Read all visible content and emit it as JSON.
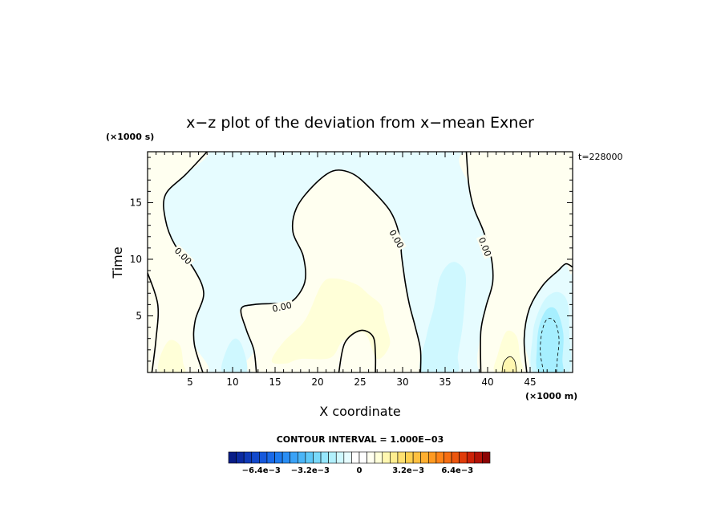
{
  "chart_data": {
    "type": "contour",
    "title": "x−z plot of the deviation from x−mean Exner",
    "xlabel": "X coordinate",
    "ylabel": "Time",
    "x_unit": "(×1000 m)",
    "y_unit": "(×1000 s)",
    "time_label": "t=228000",
    "xlim": [
      0,
      50
    ],
    "ylim": [
      0,
      19.5
    ],
    "x_ticks": [
      5,
      10,
      15,
      20,
      25,
      30,
      35,
      40,
      45
    ],
    "y_ticks": [
      5,
      10,
      15
    ],
    "contour_interval_label": "CONTOUR INTERVAL = 1.000E−03",
    "contour_labels": [
      {
        "text": "0.00",
        "x": 4.2,
        "y": 10.3,
        "angle": 45
      },
      {
        "text": "0.00",
        "x": 15.8,
        "y": 5.8,
        "angle": -12
      },
      {
        "text": "0.00",
        "x": 29.3,
        "y": 11.8,
        "angle": 60
      },
      {
        "text": "0.00",
        "x": 39.7,
        "y": 11.1,
        "angle": 68
      }
    ],
    "zero_contours": [
      [
        [
          7.0,
          19.5
        ],
        [
          4.5,
          17.5
        ],
        [
          2.1,
          15.7
        ],
        [
          2.1,
          13.5
        ],
        [
          3.2,
          11.3
        ],
        [
          5.4,
          9.2
        ],
        [
          6.6,
          7.0
        ],
        [
          5.6,
          4.6
        ],
        [
          5.5,
          2.5
        ],
        [
          6.5,
          0
        ]
      ],
      [
        [
          0,
          8.8
        ],
        [
          1.2,
          6.0
        ],
        [
          1.0,
          3.0
        ],
        [
          0.6,
          0.5
        ],
        [
          0.5,
          0
        ]
      ],
      [
        [
          12.8,
          0
        ],
        [
          12.5,
          2.0
        ],
        [
          11.6,
          3.8
        ],
        [
          11.0,
          5.6
        ],
        [
          12.5,
          6.0
        ],
        [
          15.0,
          6.1
        ],
        [
          17.0,
          6.3
        ],
        [
          18.5,
          8.0
        ],
        [
          18.3,
          10.3
        ],
        [
          17.1,
          12.4
        ],
        [
          17.5,
          14.5
        ],
        [
          19.5,
          16.5
        ],
        [
          21.8,
          17.8
        ],
        [
          24.0,
          17.6
        ],
        [
          26.0,
          16.4
        ],
        [
          28.5,
          14.3
        ],
        [
          29.6,
          12.2
        ],
        [
          29.9,
          10.2
        ],
        [
          30.3,
          8.0
        ],
        [
          30.8,
          6.0
        ],
        [
          31.5,
          4.0
        ],
        [
          32.1,
          2.0
        ],
        [
          32.1,
          0
        ]
      ],
      [
        [
          22.5,
          0
        ],
        [
          23.2,
          2.6
        ],
        [
          25.0,
          3.7
        ],
        [
          26.5,
          3.2
        ],
        [
          26.8,
          1.6
        ],
        [
          26.8,
          0
        ]
      ],
      [
        [
          37.5,
          19.5
        ],
        [
          37.8,
          16.5
        ],
        [
          38.4,
          14.5
        ],
        [
          39.5,
          12.5
        ],
        [
          40.4,
          10.3
        ],
        [
          40.6,
          8.0
        ],
        [
          39.8,
          5.8
        ],
        [
          39.2,
          3.6
        ],
        [
          39.2,
          0
        ]
      ],
      [
        [
          44.6,
          0
        ],
        [
          44.3,
          3.0
        ],
        [
          44.9,
          5.6
        ],
        [
          46.5,
          7.7
        ],
        [
          48.3,
          9.0
        ],
        [
          49.2,
          9.6
        ],
        [
          50,
          9.3
        ]
      ]
    ],
    "positive_contours": [
      [
        [
          41.7,
          0
        ],
        [
          41.9,
          0.9
        ],
        [
          42.6,
          1.4
        ],
        [
          43.2,
          1.0
        ],
        [
          43.4,
          0
        ]
      ]
    ],
    "negative_contours": [
      [
        [
          46.6,
          0
        ],
        [
          46.2,
          1.8
        ],
        [
          46.4,
          3.6
        ],
        [
          47.0,
          4.7
        ],
        [
          47.9,
          4.5
        ],
        [
          48.4,
          3.0
        ],
        [
          48.2,
          1.2
        ],
        [
          48.1,
          0
        ]
      ]
    ],
    "shaded_regions": [
      {
        "level": "pos1",
        "color": "#fffff0",
        "polygon": [
          [
            0,
            0
          ],
          [
            7,
            0
          ],
          [
            5.5,
            2.5
          ],
          [
            5.6,
            4.6
          ],
          [
            6.6,
            7.0
          ],
          [
            5.4,
            9.2
          ],
          [
            3.2,
            11.3
          ],
          [
            2.1,
            13.5
          ],
          [
            2.1,
            15.7
          ],
          [
            4.5,
            17.5
          ],
          [
            7,
            19.5
          ],
          [
            0,
            19.5
          ]
        ]
      },
      {
        "level": "pos1",
        "color": "#fffff0",
        "polygon": [
          [
            12.8,
            0
          ],
          [
            12.5,
            2.0
          ],
          [
            11.6,
            3.8
          ],
          [
            11.0,
            5.6
          ],
          [
            15.0,
            6.1
          ],
          [
            17.0,
            6.3
          ],
          [
            18.5,
            8.0
          ],
          [
            18.3,
            10.3
          ],
          [
            17.1,
            12.4
          ],
          [
            17.5,
            14.5
          ],
          [
            19.5,
            16.5
          ],
          [
            21.8,
            17.8
          ],
          [
            24.0,
            17.6
          ],
          [
            26.0,
            16.4
          ],
          [
            28.5,
            14.3
          ],
          [
            29.6,
            12.2
          ],
          [
            29.9,
            10.2
          ],
          [
            30.3,
            8.0
          ],
          [
            30.8,
            6.0
          ],
          [
            31.5,
            4.0
          ],
          [
            32.1,
            2.0
          ],
          [
            32.1,
            0
          ]
        ]
      },
      {
        "level": "pos1",
        "color": "#fffff0",
        "polygon": [
          [
            37.5,
            19.5
          ],
          [
            37.8,
            16.5
          ],
          [
            38.4,
            14.5
          ],
          [
            39.5,
            12.5
          ],
          [
            40.4,
            10.3
          ],
          [
            40.6,
            8.0
          ],
          [
            39.8,
            5.8
          ],
          [
            39.2,
            3.6
          ],
          [
            39.2,
            0
          ],
          [
            44.6,
            0
          ],
          [
            44.3,
            3.0
          ],
          [
            44.9,
            5.6
          ],
          [
            46.5,
            7.7
          ],
          [
            48.3,
            9.0
          ],
          [
            49.2,
            9.6
          ],
          [
            50,
            9.3
          ],
          [
            50,
            19.5
          ]
        ]
      },
      {
        "level": "pos2",
        "color": "#ffffd8",
        "polygon": [
          [
            1.5,
            0
          ],
          [
            1.4,
            1.2
          ],
          [
            2.5,
            2.8
          ],
          [
            3.8,
            2.4
          ],
          [
            4.2,
            0.8
          ],
          [
            4.3,
            0
          ]
        ]
      },
      {
        "level": "pos2",
        "color": "#ffffd8",
        "polygon": [
          [
            14.6,
            1.0
          ],
          [
            16.0,
            2.7
          ],
          [
            18.5,
            4.6
          ],
          [
            20.5,
            7.8
          ],
          [
            22.0,
            8.3
          ],
          [
            24.5,
            7.8
          ],
          [
            26.0,
            6.9
          ],
          [
            27.5,
            5.9
          ],
          [
            27.9,
            4.5
          ],
          [
            28.5,
            2.5
          ],
          [
            27.0,
            1.2
          ],
          [
            25.5,
            3.5
          ],
          [
            23.0,
            2.8
          ],
          [
            21.5,
            1.3
          ],
          [
            18.0,
            1.2
          ],
          [
            16.3,
            0.8
          ]
        ]
      },
      {
        "level": "pos2",
        "color": "#ffffd8",
        "polygon": [
          [
            40.9,
            0
          ],
          [
            41.2,
            1.6
          ],
          [
            42.2,
            3.6
          ],
          [
            43.4,
            3.2
          ],
          [
            43.8,
            1.4
          ],
          [
            44.0,
            0
          ]
        ]
      },
      {
        "level": "pos3",
        "color": "#fff7b0",
        "polygon": [
          [
            41.7,
            0
          ],
          [
            41.9,
            0.9
          ],
          [
            42.6,
            1.4
          ],
          [
            43.2,
            1.0
          ],
          [
            43.4,
            0
          ]
        ]
      },
      {
        "level": "neg2",
        "color": "#cff8ff",
        "polygon": [
          [
            8.8,
            0
          ],
          [
            9.3,
            2.0
          ],
          [
            10.3,
            3.0
          ],
          [
            11.2,
            2.2
          ],
          [
            11.6,
            0
          ]
        ]
      },
      {
        "level": "neg2",
        "color": "#cff8ff",
        "polygon": [
          [
            32.2,
            0
          ],
          [
            32.8,
            3.2
          ],
          [
            33.7,
            5.8
          ],
          [
            34.3,
            8.2
          ],
          [
            35.3,
            9.5
          ],
          [
            36.4,
            9.7
          ],
          [
            37.4,
            8.7
          ],
          [
            37.3,
            6.2
          ],
          [
            37.0,
            3.8
          ],
          [
            36.5,
            1.5
          ],
          [
            36.3,
            0
          ]
        ]
      },
      {
        "level": "neg2",
        "color": "#cff8ff",
        "polygon": [
          [
            45.4,
            0
          ],
          [
            45.3,
            3.2
          ],
          [
            45.8,
            5.0
          ],
          [
            46.9,
            6.6
          ],
          [
            48.3,
            7.1
          ],
          [
            49.4,
            6.2
          ],
          [
            49.6,
            3.5
          ],
          [
            49.5,
            0
          ]
        ]
      },
      {
        "level": "neg3",
        "color": "#a6efff",
        "polygon": [
          [
            46.0,
            0
          ],
          [
            45.8,
            2.2
          ],
          [
            46.1,
            4.2
          ],
          [
            47.0,
            5.6
          ],
          [
            48.1,
            5.5
          ],
          [
            48.9,
            3.5
          ],
          [
            48.8,
            1.2
          ],
          [
            48.7,
            0
          ]
        ]
      }
    ],
    "base_color": "#e6fcff",
    "colorbar": {
      "colors": [
        "#081d87",
        "#0b2aa0",
        "#0f3ab8",
        "#1249cc",
        "#1659dc",
        "#1a6ae8",
        "#1d7bf0",
        "#2a8ef4",
        "#3aa2f6",
        "#4ab5f7",
        "#5ec8f8",
        "#79d9fa",
        "#96e6fb",
        "#b2f0fc",
        "#cff8ff",
        "#e6fcff",
        "#ffffff",
        "#ffffff",
        "#fffff0",
        "#ffffd8",
        "#fff7b0",
        "#ffee90",
        "#ffe070",
        "#ffd050",
        "#ffc040",
        "#ffaf30",
        "#ff9a22",
        "#ff8418",
        "#f66e12",
        "#ec560e",
        "#e03c0a",
        "#cc2208",
        "#b31206",
        "#8c0404"
      ],
      "tick_labels": [
        "−6.4e−3",
        "−3.2e−3",
        "0",
        "3.2e−3",
        "6.4e−3"
      ],
      "tick_positions": [
        0.125,
        0.3125,
        0.5,
        0.6875,
        0.875
      ]
    }
  }
}
